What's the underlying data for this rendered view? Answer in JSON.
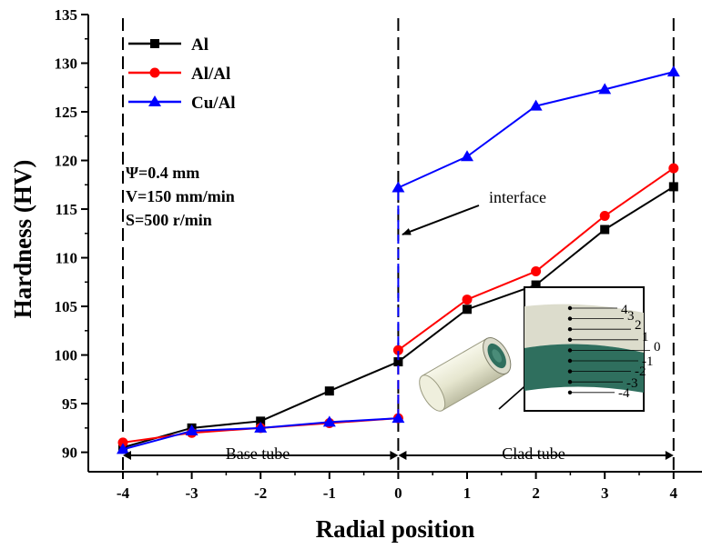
{
  "chart_data": {
    "type": "line",
    "xlabel": "Radial position",
    "ylabel": "Hardness (HV)",
    "xlim": [
      -4.3,
      4.3
    ],
    "ylim": [
      88,
      135
    ],
    "xticks": [
      "-4",
      "-3",
      "-2",
      "-1",
      "0",
      "1",
      "2",
      "3",
      "4"
    ],
    "yticks": [
      "90",
      "95",
      "100",
      "105",
      "110",
      "115",
      "120",
      "125",
      "130",
      "135"
    ],
    "legend_position": "top-left",
    "series": [
      {
        "name": "Al",
        "color": "#000000",
        "marker": "square",
        "points": [
          [
            -4,
            90.5
          ],
          [
            -3,
            92.5
          ],
          [
            -2,
            93.2
          ],
          [
            -1,
            96.3
          ],
          [
            0,
            99.3
          ],
          [
            1,
            104.7
          ],
          [
            2,
            107.2
          ],
          [
            3,
            112.9
          ],
          [
            4,
            117.3
          ]
        ]
      },
      {
        "name": "Al/Al",
        "color": "#ff0000",
        "marker": "circle",
        "points": [
          [
            -4,
            91.0
          ],
          [
            -3,
            92.0
          ],
          [
            -2,
            92.5
          ],
          [
            -1,
            93.0
          ],
          [
            0,
            93.5
          ],
          [
            0,
            100.5
          ],
          [
            1,
            105.7
          ],
          [
            2,
            108.6
          ],
          [
            3,
            114.3
          ],
          [
            4,
            119.2
          ]
        ]
      },
      {
        "name": "Cu/Al",
        "color": "#0000ff",
        "marker": "triangle",
        "points": [
          [
            -4,
            90.3
          ],
          [
            -3,
            92.2
          ],
          [
            -2,
            92.5
          ],
          [
            -1,
            93.1
          ],
          [
            0,
            93.5
          ],
          [
            0,
            117.2
          ],
          [
            1,
            120.4
          ],
          [
            2,
            125.6
          ],
          [
            3,
            127.3
          ],
          [
            4,
            129.1
          ]
        ]
      }
    ],
    "annotations": {
      "params": [
        "Ψ=0.4 mm",
        "V=150 mm/min",
        "S=500 r/min"
      ],
      "interface_label": "interface",
      "base_tube_label": "Base tube",
      "clad_tube_label": "Clad tube",
      "vlines_x": [
        -4,
        0,
        4
      ]
    },
    "inset": {
      "labels": [
        "4",
        "3",
        "2",
        "1",
        "0",
        "-1",
        "-2",
        "-3",
        "-4"
      ],
      "colors": {
        "outer_layer": "#dcdccc",
        "inner_layer": "#2f6f5e",
        "tube_body": "#ececd6"
      }
    }
  }
}
